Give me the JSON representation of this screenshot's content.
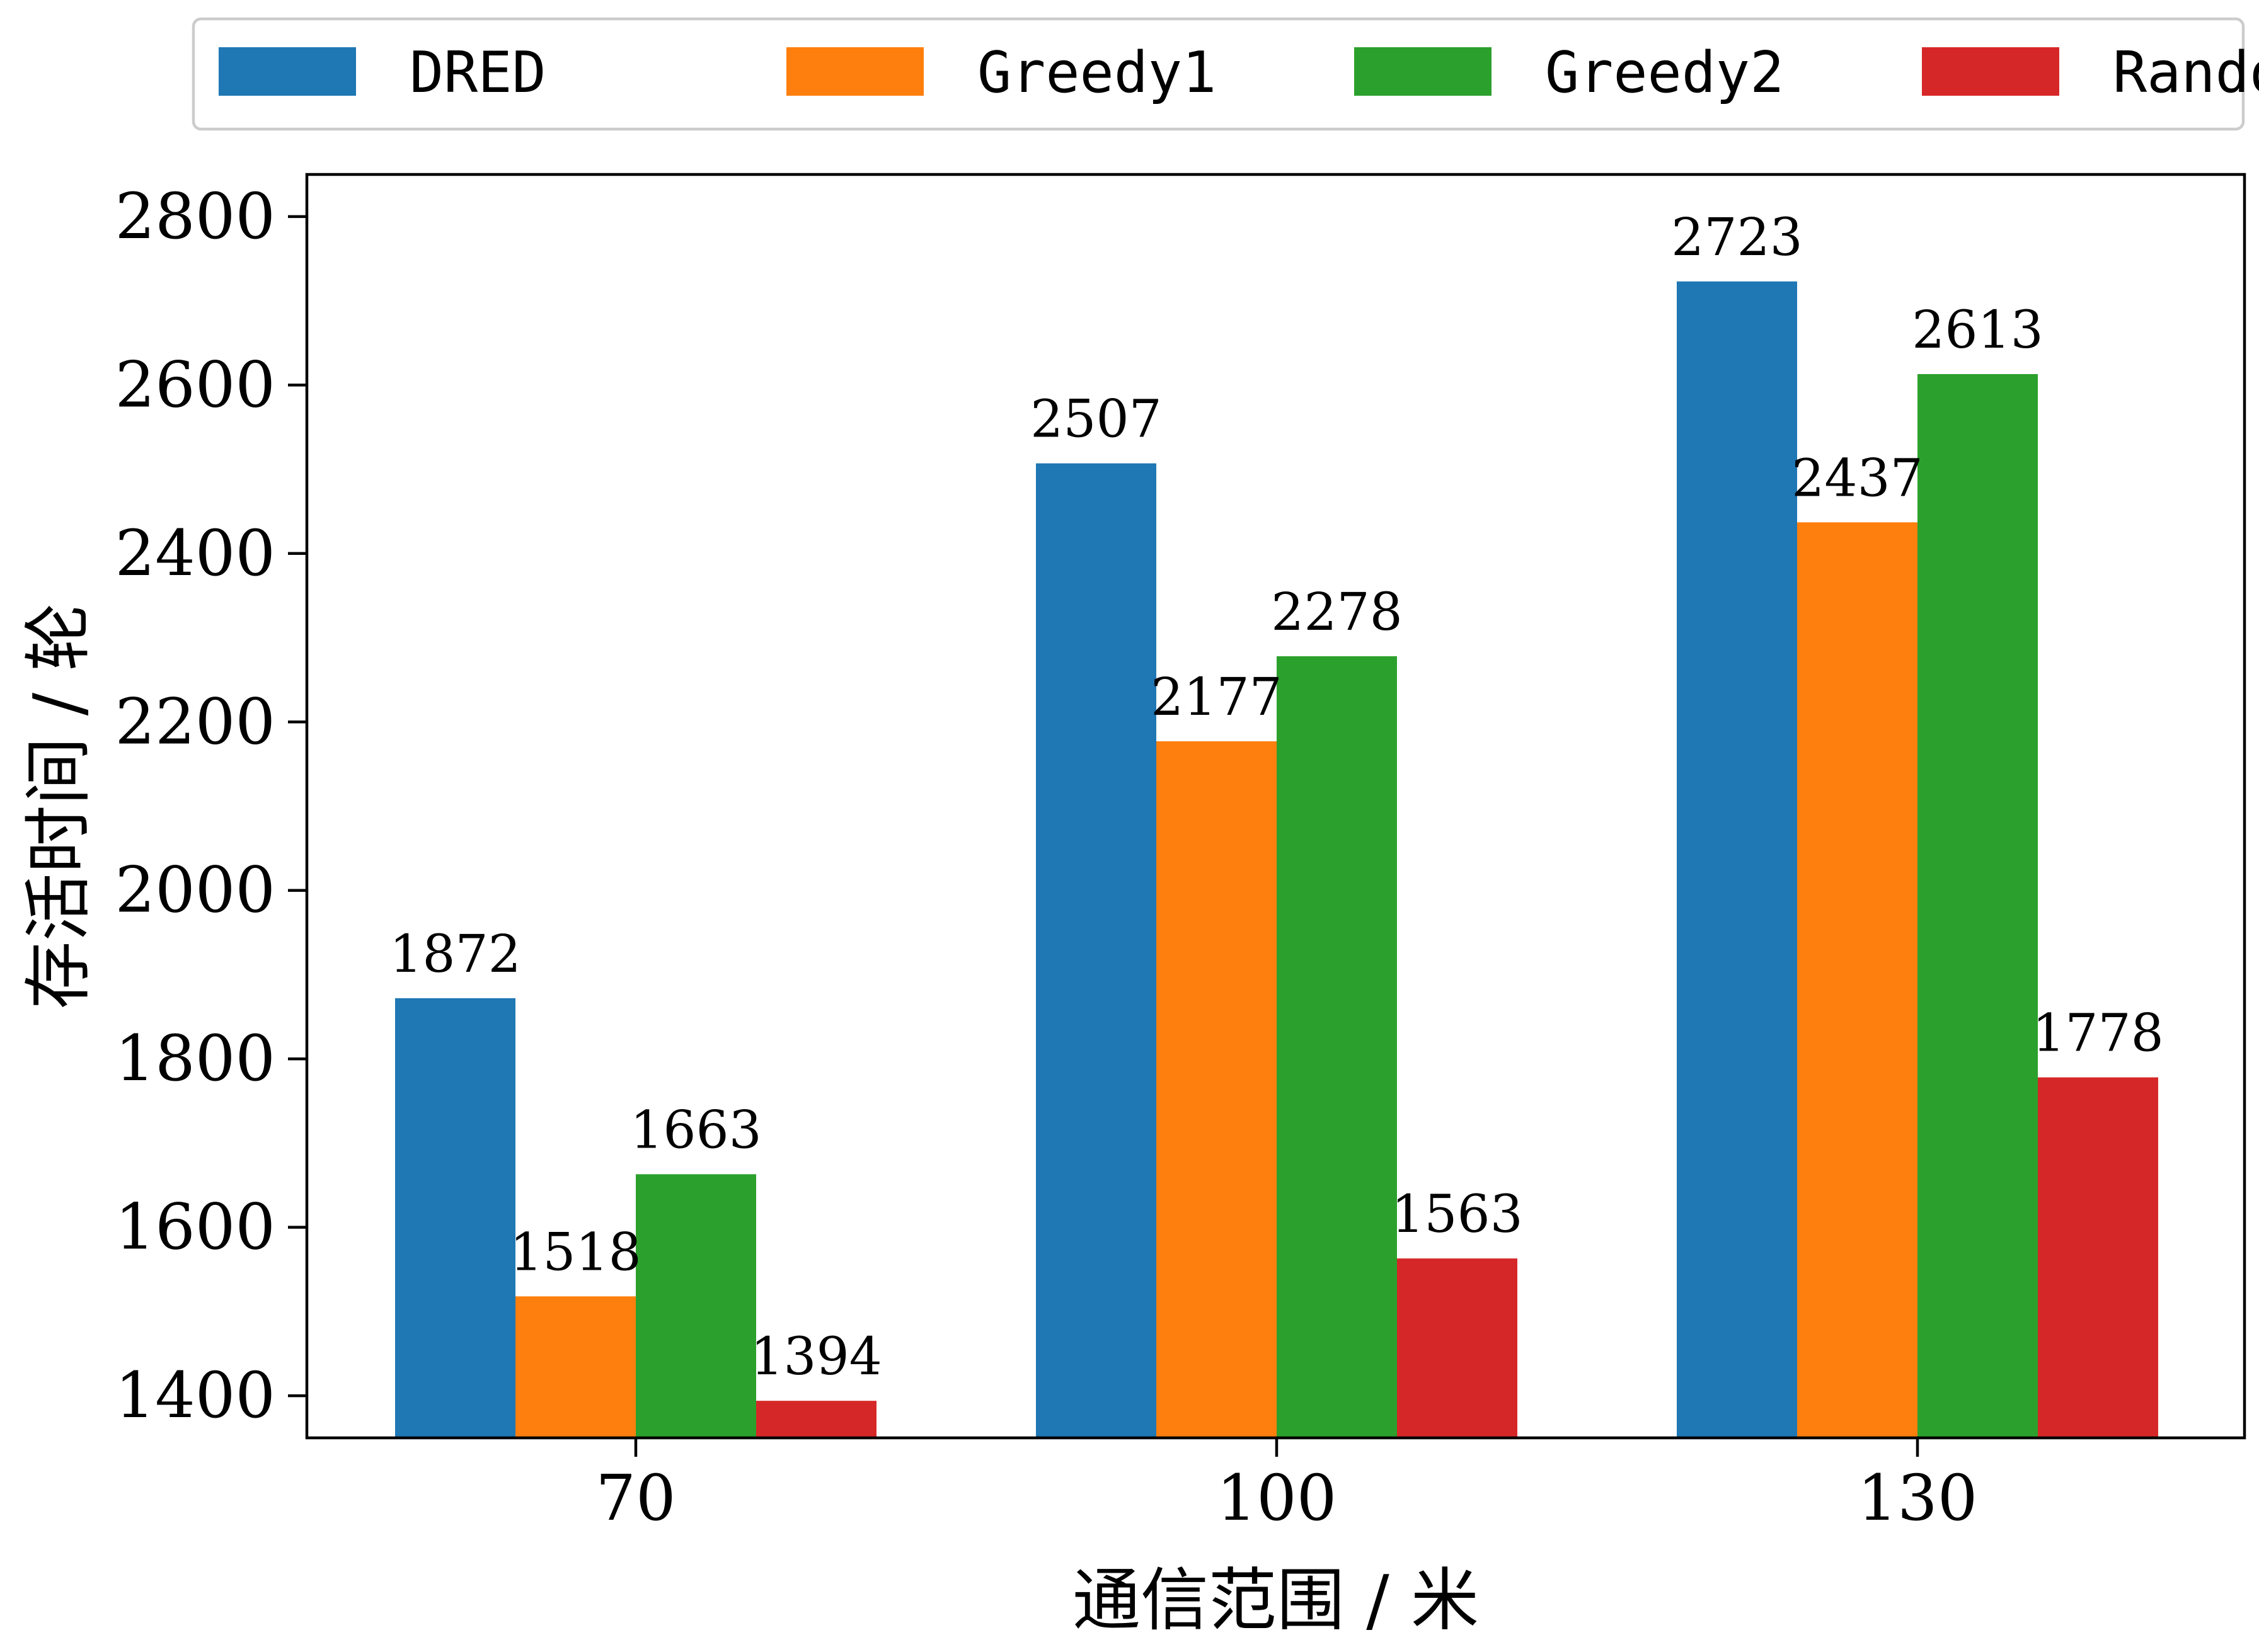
{
  "chart_data": {
    "type": "bar",
    "title": "",
    "xlabel": "通信范围 / 米",
    "ylabel": "存活时间 / 轮",
    "categories": [
      "70",
      "100",
      "130"
    ],
    "ylim": [
      1350,
      2850
    ],
    "yticks": [
      1400,
      1600,
      1800,
      2000,
      2200,
      2400,
      2600,
      2800
    ],
    "grid": false,
    "legend_position": "top",
    "series": [
      {
        "name": "DRED",
        "color": "#1f77b4",
        "values": [
          1872,
          2507,
          2723
        ]
      },
      {
        "name": "Greedy1",
        "color": "#ff7f0e",
        "values": [
          1518,
          2177,
          2437
        ]
      },
      {
        "name": "Greedy2",
        "color": "#2ca02c",
        "values": [
          1663,
          2278,
          2613
        ]
      },
      {
        "name": "Random",
        "color": "#d62728",
        "values": [
          1394,
          1563,
          1778
        ]
      }
    ]
  }
}
